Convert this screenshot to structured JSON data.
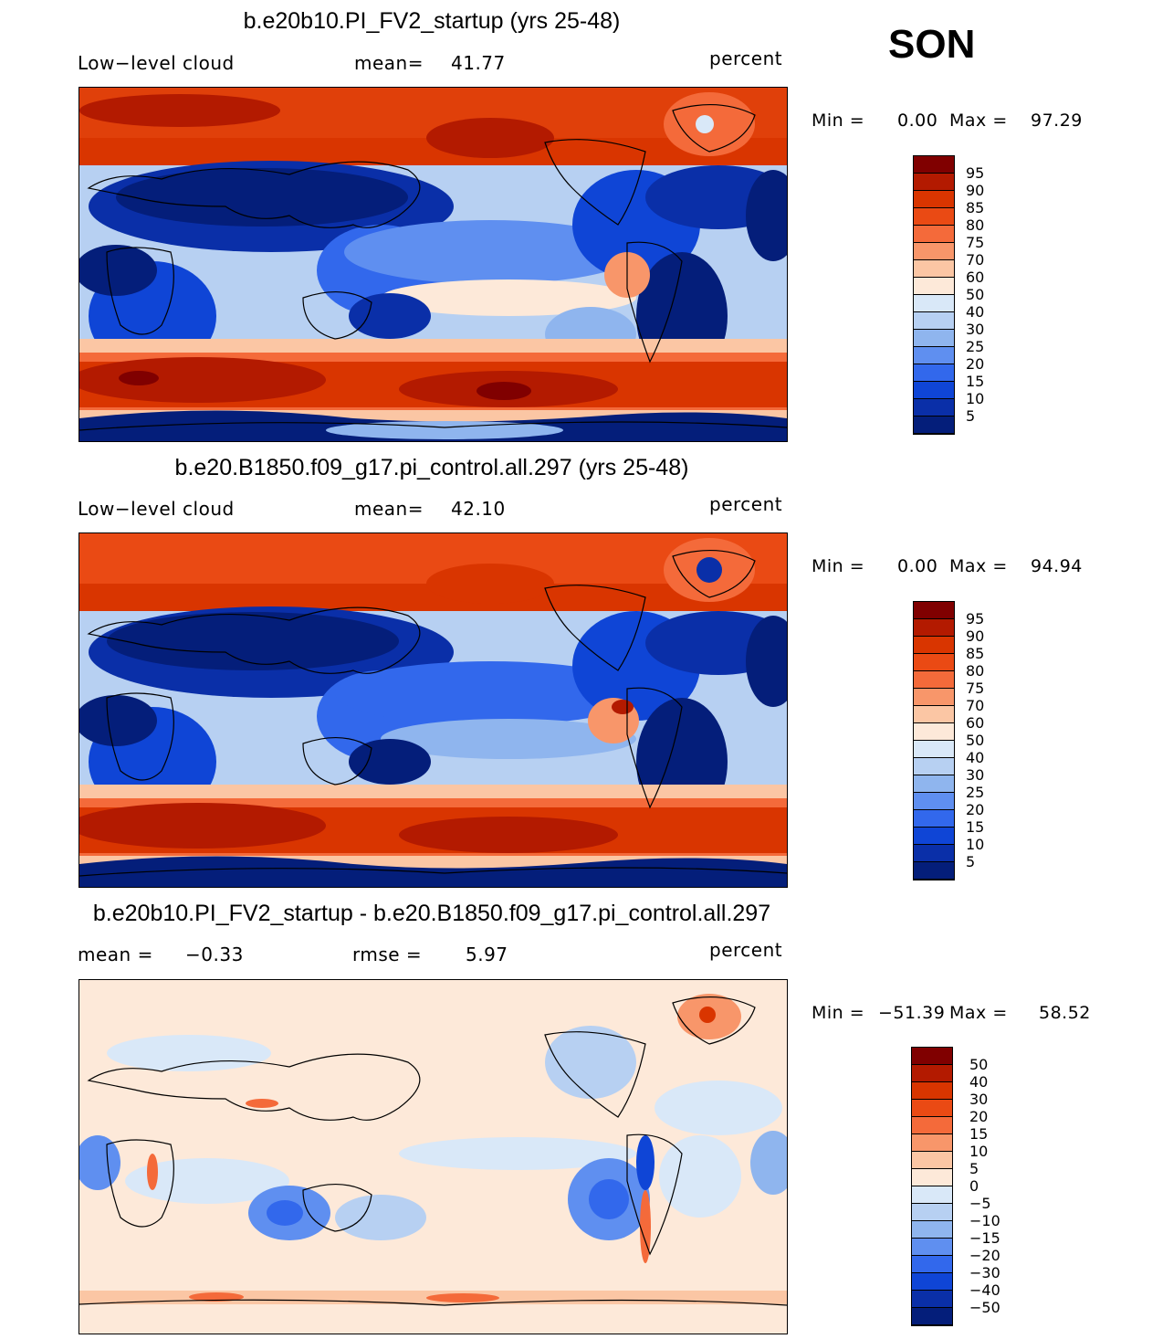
{
  "season": "SON",
  "units": "percent",
  "chart_data": [
    {
      "type": "heatmap",
      "title": "b.e20b10.PI_FV2_startup (yrs 25-48)",
      "variable": "Low−level cloud",
      "stat1_label": "mean=",
      "stat1_value": "41.77",
      "units": "percent",
      "min_label": "Min =",
      "min_value": "0.00",
      "max_label": "Max =",
      "max_value": "97.29",
      "colorbar_levels": [
        "95",
        "90",
        "85",
        "80",
        "75",
        "70",
        "60",
        "50",
        "40",
        "30",
        "25",
        "20",
        "15",
        "10",
        "5"
      ]
    },
    {
      "type": "heatmap",
      "title": "b.e20.B1850.f09_g17.pi_control.all.297 (yrs 25-48)",
      "variable": "Low−level cloud",
      "stat1_label": "mean=",
      "stat1_value": "42.10",
      "units": "percent",
      "min_label": "Min =",
      "min_value": "0.00",
      "max_label": "Max =",
      "max_value": "94.94",
      "colorbar_levels": [
        "95",
        "90",
        "85",
        "80",
        "75",
        "70",
        "60",
        "50",
        "40",
        "30",
        "25",
        "20",
        "15",
        "10",
        "5"
      ]
    },
    {
      "type": "heatmap",
      "title": "b.e20b10.PI_FV2_startup - b.e20.B1850.f09_g17.pi_control.all.297",
      "stat1_label": "mean =",
      "stat1_value": "−0.33",
      "stat2_label": "rmse =",
      "stat2_value": "5.97",
      "units": "percent",
      "min_label": "Min =",
      "min_value": "−51.39",
      "max_label": "Max =",
      "max_value": "58.52",
      "colorbar_levels": [
        "50",
        "40",
        "30",
        "20",
        "15",
        "10",
        "5",
        "0",
        "−5",
        "−10",
        "−15",
        "−20",
        "−30",
        "−40",
        "−50"
      ]
    }
  ],
  "colors": {
    "abs_scale": [
      "#800000",
      "#b31a00",
      "#d93500",
      "#ea4a14",
      "#f46a3a",
      "#f8966a",
      "#fbc6a4",
      "#fde9d9",
      "#d9e8f8",
      "#b7d0f2",
      "#8fb5ee",
      "#5f8ff0",
      "#3268ec",
      "#0f45d6",
      "#0a2fa8",
      "#041e7a"
    ],
    "diff_scale": [
      "#800000",
      "#b31a00",
      "#d93500",
      "#ea4a14",
      "#f46a3a",
      "#f8966a",
      "#fbc6a4",
      "#fde9d9",
      "#d9e8f8",
      "#b7d0f2",
      "#8fb5ee",
      "#5f8ff0",
      "#3268ec",
      "#0f45d6",
      "#0a2fa8",
      "#041e7a"
    ]
  }
}
